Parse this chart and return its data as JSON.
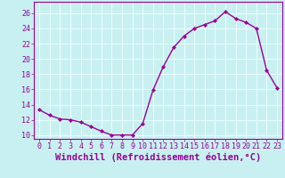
{
  "hours": [
    0,
    1,
    2,
    3,
    4,
    5,
    6,
    7,
    8,
    9,
    10,
    11,
    12,
    13,
    14,
    15,
    16,
    17,
    18,
    19,
    20,
    21,
    22,
    23
  ],
  "values": [
    13.3,
    12.6,
    12.1,
    12.0,
    11.7,
    11.1,
    10.5,
    10.0,
    10.0,
    10.0,
    11.5,
    15.9,
    19.0,
    21.5,
    23.0,
    24.0,
    24.5,
    25.0,
    26.2,
    25.3,
    24.8,
    24.0,
    18.5,
    16.2
  ],
  "ylim": [
    9.5,
    27.5
  ],
  "xlim": [
    -0.5,
    23.5
  ],
  "yticks": [
    10,
    12,
    14,
    16,
    18,
    20,
    22,
    24,
    26
  ],
  "xticks": [
    0,
    1,
    2,
    3,
    4,
    5,
    6,
    7,
    8,
    9,
    10,
    11,
    12,
    13,
    14,
    15,
    16,
    17,
    18,
    19,
    20,
    21,
    22,
    23
  ],
  "line_color": "#990099",
  "marker": "D",
  "marker_size": 2.2,
  "bg_color": "#c8f0f0",
  "grid_color": "#e8ffff",
  "xlabel": "Windchill (Refroidissement éolien,°C)",
  "xlabel_fontsize": 7.5,
  "tick_fontsize": 6,
  "line_width": 1.0,
  "fig_width": 3.2,
  "fig_height": 2.0,
  "dpi": 100
}
